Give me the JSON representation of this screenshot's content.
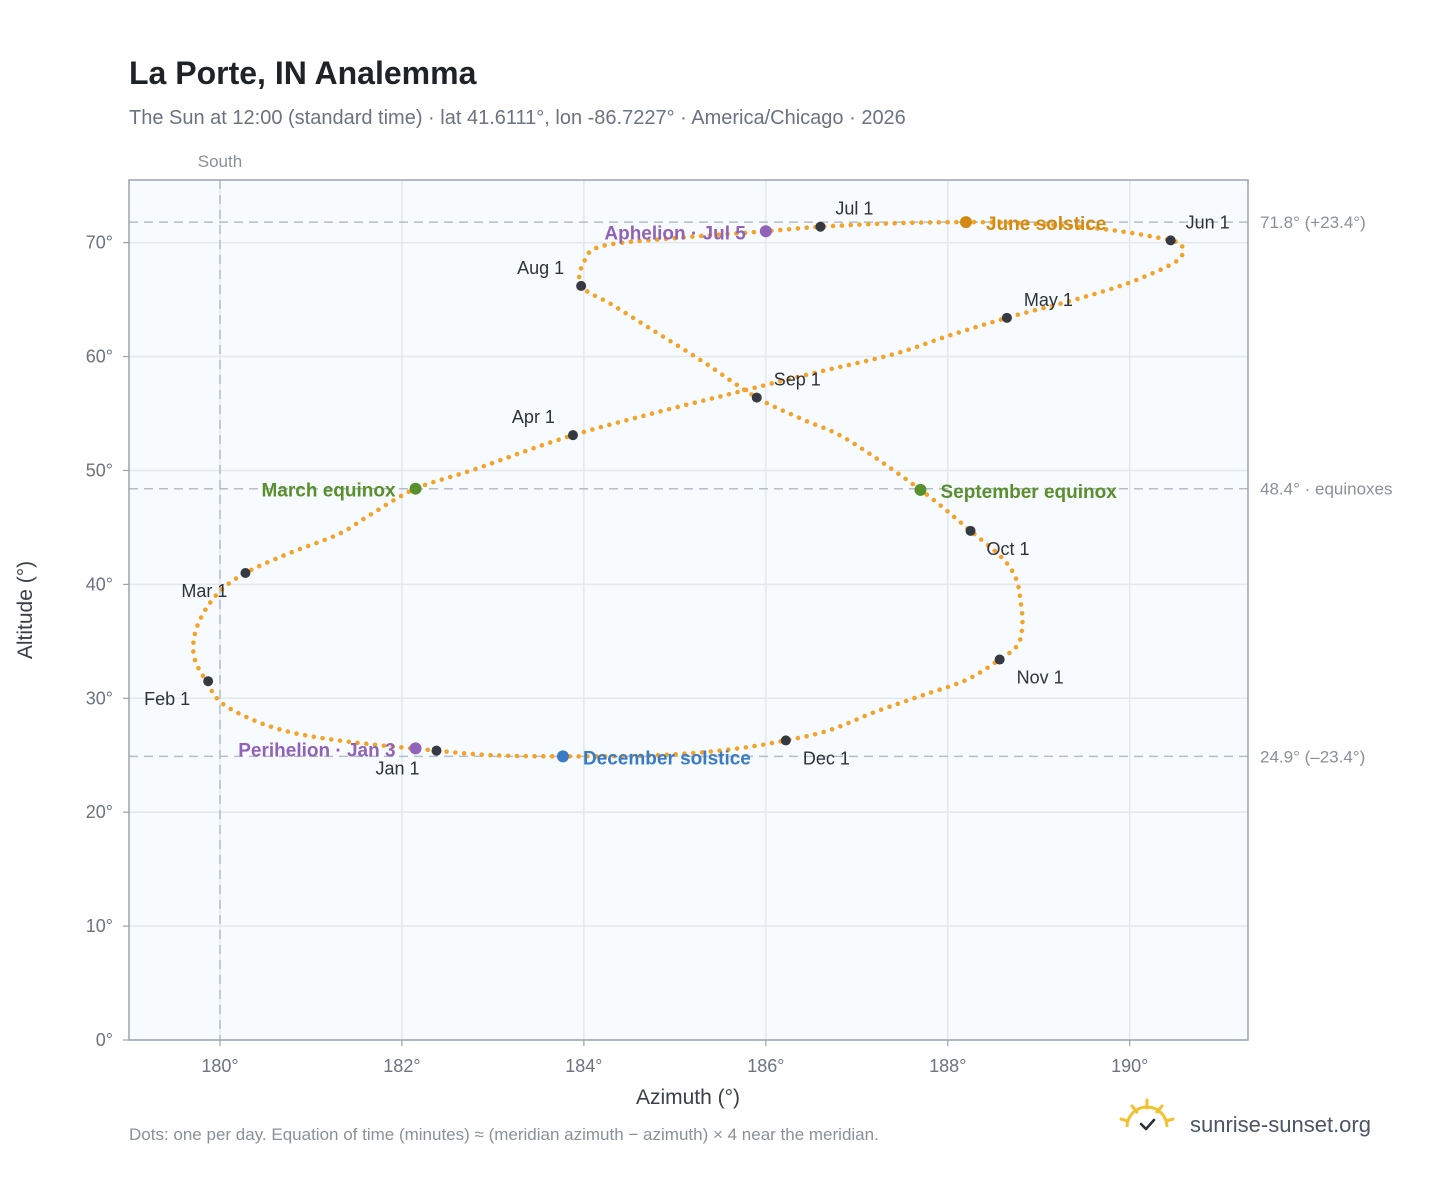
{
  "title": "La Porte, IN Analemma",
  "subtitle": "The Sun at 12:00 (standard time) · lat 41.6111°, lon -86.7227° · America/Chicago · 2026",
  "footnote": "Dots: one per day. Equation of time (minutes) ≈ (meridian azimuth − azimuth) × 4 near the meridian.",
  "brand": "sunrise-sunset.org",
  "chart_data": {
    "type": "scatter",
    "xlabel": "Azimuth (°)",
    "ylabel": "Altitude (°)",
    "xlim": [
      179.0,
      191.3
    ],
    "ylim": [
      0,
      75.5
    ],
    "xticks": [
      180,
      182,
      184,
      186,
      188,
      190
    ],
    "xtick_labels": [
      "180°",
      "182°",
      "184°",
      "186°",
      "188°",
      "190°"
    ],
    "yticks": [
      0,
      10,
      20,
      30,
      40,
      50,
      60,
      70
    ],
    "ytick_labels": [
      "0°",
      "10°",
      "20°",
      "30°",
      "40°",
      "50°",
      "60°",
      "70°"
    ],
    "grid": true,
    "meridian": {
      "x": 180,
      "label": "South"
    },
    "reference_lines": [
      {
        "y": 71.8,
        "label": "71.8° (+23.4°)"
      },
      {
        "y": 48.4,
        "label": "48.4° · equinoxes"
      },
      {
        "y": 24.9,
        "label": "24.9° (–23.4°)"
      }
    ],
    "series": [
      {
        "style": "daily dots",
        "color": "#f2a42a",
        "points": [
          [
            182.38,
            25.4
          ],
          [
            181.3,
            26.3
          ],
          [
            180.6,
            27.4
          ],
          [
            180.05,
            29.4
          ],
          [
            179.85,
            31.5
          ],
          [
            179.72,
            33.5
          ],
          [
            179.72,
            35.5
          ],
          [
            179.82,
            37.5
          ],
          [
            180.0,
            39.4
          ],
          [
            180.28,
            41.0
          ],
          [
            180.75,
            42.7
          ],
          [
            181.3,
            44.4
          ],
          [
            181.65,
            46.1
          ],
          [
            182.15,
            48.4
          ],
          [
            182.8,
            50.1
          ],
          [
            183.8,
            52.9
          ],
          [
            184.8,
            55.1
          ],
          [
            185.6,
            56.7
          ],
          [
            186.5,
            58.5
          ],
          [
            187.4,
            60.2
          ],
          [
            188.0,
            61.8
          ],
          [
            188.65,
            63.4
          ],
          [
            189.4,
            65.0
          ],
          [
            190.0,
            66.5
          ],
          [
            190.5,
            68.3
          ],
          [
            190.58,
            69.5
          ],
          [
            190.45,
            70.2
          ],
          [
            189.7,
            71.2
          ],
          [
            188.8,
            71.7
          ],
          [
            188.2,
            71.8
          ],
          [
            187.4,
            71.7
          ],
          [
            186.6,
            71.4
          ],
          [
            186.0,
            71.0
          ],
          [
            185.0,
            70.4
          ],
          [
            184.2,
            69.7
          ],
          [
            184.0,
            68.3
          ],
          [
            183.97,
            66.2
          ],
          [
            184.3,
            64.6
          ],
          [
            184.7,
            62.6
          ],
          [
            185.3,
            59.6
          ],
          [
            185.9,
            56.4
          ],
          [
            186.4,
            54.5
          ],
          [
            186.9,
            52.7
          ],
          [
            187.7,
            48.3
          ],
          [
            188.25,
            44.7
          ],
          [
            188.6,
            42.3
          ],
          [
            188.75,
            40.5
          ],
          [
            188.8,
            38.5
          ],
          [
            188.82,
            36.5
          ],
          [
            188.77,
            34.7
          ],
          [
            188.57,
            33.4
          ],
          [
            188.2,
            31.6
          ],
          [
            187.7,
            30.2
          ],
          [
            187.2,
            28.8
          ],
          [
            186.7,
            27.2
          ],
          [
            186.22,
            26.3
          ],
          [
            185.6,
            25.5
          ],
          [
            184.8,
            25.0
          ],
          [
            183.77,
            24.9
          ],
          [
            183.0,
            25.0
          ],
          [
            182.38,
            25.4
          ]
        ]
      }
    ],
    "month_markers": [
      {
        "label": "Jan 1",
        "x": 182.38,
        "y": 25.4
      },
      {
        "label": "Feb 1",
        "x": 179.87,
        "y": 31.5
      },
      {
        "label": "Mar 1",
        "x": 180.28,
        "y": 41.0
      },
      {
        "label": "Apr 1",
        "x": 183.88,
        "y": 53.1
      },
      {
        "label": "May 1",
        "x": 188.65,
        "y": 63.4
      },
      {
        "label": "Jun 1",
        "x": 190.45,
        "y": 70.2
      },
      {
        "label": "Jul 1",
        "x": 186.6,
        "y": 71.4
      },
      {
        "label": "Aug 1",
        "x": 183.97,
        "y": 66.2
      },
      {
        "label": "Sep 1",
        "x": 185.9,
        "y": 56.4
      },
      {
        "label": "Oct 1",
        "x": 188.25,
        "y": 44.7
      },
      {
        "label": "Nov 1",
        "x": 188.57,
        "y": 33.4
      },
      {
        "label": "Dec 1",
        "x": 186.22,
        "y": 26.3
      }
    ],
    "events": [
      {
        "label": "March equinox",
        "x": 182.15,
        "y": 48.4,
        "color": "#5a8f2e"
      },
      {
        "label": "June solstice",
        "x": 188.2,
        "y": 71.8,
        "color": "#d28a14"
      },
      {
        "label": "September equinox",
        "x": 187.7,
        "y": 48.3,
        "color": "#5a8f2e"
      },
      {
        "label": "December solstice",
        "x": 183.77,
        "y": 24.9,
        "color": "#3a7bc8"
      },
      {
        "label": "Perihelion · Jan 3",
        "x": 182.15,
        "y": 25.6,
        "color": "#8e63b8"
      },
      {
        "label": "Aphelion · Jul 5",
        "x": 186.0,
        "y": 71.0,
        "color": "#8e63b8"
      }
    ],
    "colors": {
      "daily_dots": "#f2a42a",
      "month_markers": "#353a42",
      "plot_background": "#f8fbfd",
      "logo": "#f2c12e"
    }
  }
}
